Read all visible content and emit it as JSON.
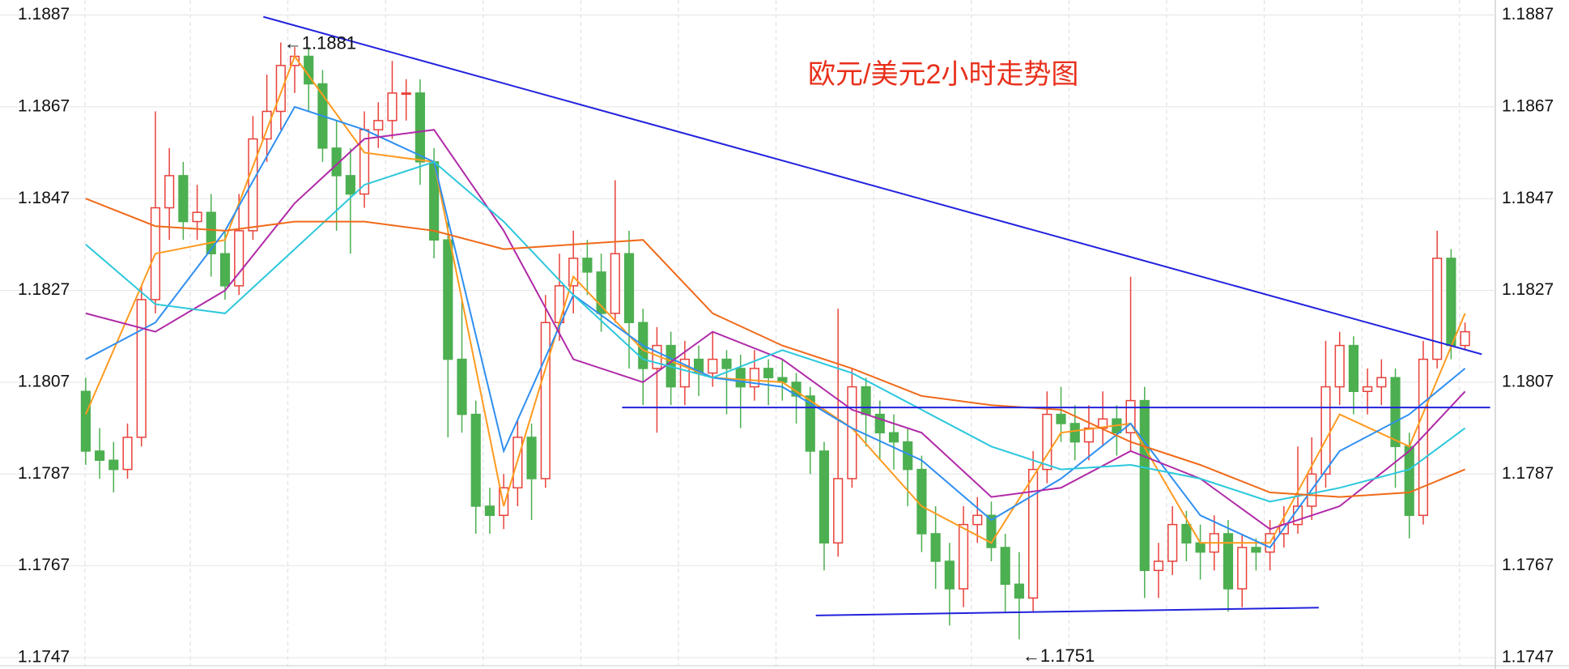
{
  "chart_data": {
    "type": "candlestick",
    "title": "欧元/美元2小时走势图",
    "annotations": [
      "←1.1881",
      "←1.1751"
    ],
    "xlim": [
      -0.4,
      101
    ],
    "ylim": [
      1.1747,
      1.1887
    ],
    "yticks": [
      1.1747,
      1.1767,
      1.1787,
      1.1807,
      1.1827,
      1.1847,
      1.1867,
      1.1887
    ],
    "grid": true,
    "up_color": "#e8413a",
    "down_color": "#4caf50",
    "open": [
      1.1805,
      1.1792,
      1.179,
      1.1788,
      1.1795,
      1.1825,
      1.1845,
      1.1852,
      1.1842,
      1.1844,
      1.1835,
      1.1828,
      1.184,
      1.186,
      1.1866,
      1.1876,
      1.1878,
      1.1872,
      1.1858,
      1.1852,
      1.1848,
      1.1862,
      1.1864,
      1.187,
      1.187,
      1.1855,
      1.1838,
      1.1812,
      1.18,
      1.178,
      1.1778,
      1.1784,
      1.1795,
      1.1786,
      1.182,
      1.1828,
      1.1834,
      1.1831,
      1.1822,
      1.1835,
      1.182,
      1.181,
      1.1815,
      1.1806,
      1.1812,
      1.1809,
      1.1812,
      1.181,
      1.1806,
      1.181,
      1.1808,
      1.1807,
      1.1804,
      1.1792,
      1.1772,
      1.1786,
      1.1806,
      1.18,
      1.1796,
      1.1794,
      1.1788,
      1.1774,
      1.1768,
      1.1762,
      1.1776,
      1.1778,
      1.1771,
      1.1763,
      1.176,
      1.1788,
      1.18,
      1.1798,
      1.1794,
      1.1797,
      1.1799,
      1.1796,
      1.1803,
      1.1766,
      1.1768,
      1.1776,
      1.1772,
      1.177,
      1.1774,
      1.1762,
      1.1771,
      1.177,
      1.1774,
      1.1776,
      1.178,
      1.1787,
      1.1806,
      1.1815,
      1.1805,
      1.1806,
      1.1808,
      1.1793,
      1.1778,
      1.1812,
      1.1834,
      1.1815
    ],
    "high": [
      1.1808,
      1.1797,
      1.1794,
      1.1798,
      1.1828,
      1.1866,
      1.1858,
      1.1855,
      1.185,
      1.1848,
      1.184,
      1.1848,
      1.1865,
      1.1874,
      1.1881,
      1.188,
      1.188,
      1.1875,
      1.1864,
      1.1858,
      1.1866,
      1.1868,
      1.1877,
      1.1873,
      1.1873,
      1.1858,
      1.1842,
      1.1825,
      1.1803,
      1.1784,
      1.1787,
      1.1799,
      1.1798,
      1.1826,
      1.1835,
      1.184,
      1.1838,
      1.1835,
      1.1851,
      1.184,
      1.1823,
      1.1819,
      1.1818,
      1.1816,
      1.1815,
      1.1818,
      1.1814,
      1.1813,
      1.1814,
      1.1812,
      1.1812,
      1.1809,
      1.1806,
      1.1794,
      1.1823,
      1.181,
      1.1808,
      1.1803,
      1.18,
      1.1797,
      1.1791,
      1.178,
      1.1772,
      1.178,
      1.1782,
      1.1781,
      1.1774,
      1.177,
      1.1792,
      1.1805,
      1.1806,
      1.1802,
      1.1802,
      1.1805,
      1.1802,
      1.183,
      1.1806,
      1.1772,
      1.178,
      1.1779,
      1.1776,
      1.1778,
      1.1777,
      1.1774,
      1.1773,
      1.1777,
      1.178,
      1.1793,
      1.1795,
      1.1816,
      1.1818,
      1.1817,
      1.181,
      1.1812,
      1.181,
      1.1796,
      1.1816,
      1.184,
      1.1836,
      1.182
    ],
    "low": [
      1.1789,
      1.1786,
      1.1783,
      1.1786,
      1.1793,
      1.1822,
      1.1838,
      1.1838,
      1.1838,
      1.183,
      1.1825,
      1.1826,
      1.1838,
      1.1855,
      1.1862,
      1.187,
      1.1866,
      1.1855,
      1.184,
      1.1835,
      1.1845,
      1.1858,
      1.186,
      1.1864,
      1.185,
      1.1834,
      1.1795,
      1.1796,
      1.1774,
      1.1774,
      1.1775,
      1.178,
      1.1777,
      1.1784,
      1.1816,
      1.1822,
      1.1826,
      1.1818,
      1.182,
      1.181,
      1.1802,
      1.1796,
      1.1802,
      1.1802,
      1.1804,
      1.1806,
      1.18,
      1.1797,
      1.1803,
      1.1802,
      1.1803,
      1.1798,
      1.1787,
      1.1766,
      1.1769,
      1.1784,
      1.1793,
      1.179,
      1.1788,
      1.178,
      1.177,
      1.1762,
      1.1754,
      1.1758,
      1.1772,
      1.1768,
      1.1757,
      1.1751,
      1.1757,
      1.1785,
      1.1794,
      1.179,
      1.179,
      1.1793,
      1.1791,
      1.1792,
      1.176,
      1.176,
      1.1765,
      1.1768,
      1.1764,
      1.1766,
      1.1757,
      1.1758,
      1.1766,
      1.1766,
      1.1771,
      1.1774,
      1.1777,
      1.1784,
      1.1802,
      1.18,
      1.18,
      1.1802,
      1.1784,
      1.1773,
      1.1776,
      1.181,
      1.1812,
      1.1814
    ],
    "close": [
      1.1792,
      1.179,
      1.1788,
      1.1795,
      1.1825,
      1.1845,
      1.1852,
      1.1842,
      1.1844,
      1.1835,
      1.1828,
      1.184,
      1.186,
      1.1866,
      1.1876,
      1.1878,
      1.1872,
      1.1858,
      1.1852,
      1.1848,
      1.1862,
      1.1864,
      1.187,
      1.187,
      1.1855,
      1.1838,
      1.1812,
      1.18,
      1.178,
      1.1778,
      1.1784,
      1.1795,
      1.1786,
      1.182,
      1.1828,
      1.1834,
      1.1831,
      1.1822,
      1.1835,
      1.182,
      1.181,
      1.1815,
      1.1806,
      1.1812,
      1.1809,
      1.1812,
      1.181,
      1.1806,
      1.181,
      1.1808,
      1.1807,
      1.1804,
      1.1792,
      1.1772,
      1.1786,
      1.1806,
      1.18,
      1.1796,
      1.1794,
      1.1788,
      1.1774,
      1.1768,
      1.1762,
      1.1776,
      1.1778,
      1.1771,
      1.1763,
      1.176,
      1.1788,
      1.18,
      1.1798,
      1.1794,
      1.1797,
      1.1799,
      1.1796,
      1.1803,
      1.1766,
      1.1768,
      1.1776,
      1.1772,
      1.177,
      1.1774,
      1.1762,
      1.1771,
      1.177,
      1.1774,
      1.1776,
      1.178,
      1.1787,
      1.1806,
      1.1815,
      1.1805,
      1.1806,
      1.1808,
      1.1793,
      1.1778,
      1.1812,
      1.1834,
      1.1815,
      1.1818
    ],
    "ma_x": [
      0,
      5,
      10,
      15,
      20,
      25,
      30,
      35,
      40,
      45,
      50,
      55,
      60,
      65,
      70,
      75,
      80,
      85,
      90,
      95,
      99
    ],
    "series": [
      {
        "color": "#ff9a1f",
        "values": [
          1.18,
          1.1835,
          1.1838,
          1.1878,
          1.1857,
          1.1855,
          1.178,
          1.183,
          1.1814,
          1.1808,
          1.1807,
          1.1797,
          1.178,
          1.1772,
          1.1796,
          1.1798,
          1.1772,
          1.1772,
          1.18,
          1.1793,
          1.1822
        ]
      },
      {
        "color": "#2f8ff0",
        "values": [
          1.1812,
          1.182,
          1.184,
          1.1867,
          1.1862,
          1.1855,
          1.1792,
          1.1826,
          1.1815,
          1.1808,
          1.1806,
          1.1797,
          1.179,
          1.1777,
          1.1786,
          1.1798,
          1.1778,
          1.1771,
          1.1792,
          1.18,
          1.181
        ]
      },
      {
        "color": "#b02aa8",
        "values": [
          1.1822,
          1.1818,
          1.1827,
          1.1846,
          1.186,
          1.1862,
          1.184,
          1.1812,
          1.1807,
          1.1818,
          1.1812,
          1.1801,
          1.1796,
          1.1782,
          1.1784,
          1.1792,
          1.1786,
          1.1775,
          1.178,
          1.1792,
          1.1805
        ]
      },
      {
        "color": "#2cc8dc",
        "values": [
          1.1837,
          1.1824,
          1.1822,
          1.1836,
          1.185,
          1.1855,
          1.1842,
          1.1826,
          1.1812,
          1.1808,
          1.1814,
          1.1809,
          1.1801,
          1.1793,
          1.1788,
          1.1789,
          1.1786,
          1.1781,
          1.1784,
          1.1788,
          1.1797
        ]
      },
      {
        "color": "#f06a1a",
        "values": [
          1.1847,
          1.1841,
          1.184,
          1.1842,
          1.1842,
          1.184,
          1.1836,
          1.1837,
          1.1838,
          1.1822,
          1.1815,
          1.181,
          1.1804,
          1.1802,
          1.1801,
          1.1794,
          1.1789,
          1.1783,
          1.1782,
          1.1783,
          1.1788
        ]
      }
    ],
    "trendlines": [
      {
        "color": "#2222dd",
        "x": [
          12.75,
          100.2
        ],
        "values": [
          1.18866,
          1.18131
        ]
      },
      {
        "color": "#2222dd",
        "x": [
          38.5,
          100.8
        ],
        "values": [
          1.18015,
          1.18015
        ]
      },
      {
        "color": "#2222dd",
        "x": [
          52.4,
          88.5
        ],
        "values": [
          1.17562,
          1.17579
        ]
      }
    ]
  }
}
